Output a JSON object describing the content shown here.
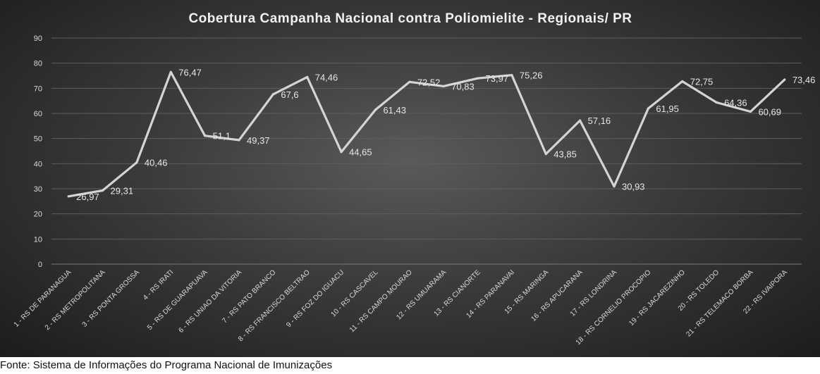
{
  "source_note": "Fonte: Sistema de Informações do Programa Nacional de Imunizações",
  "colors": {
    "background_center": "#5a5a5a",
    "background_edge": "#1c1c1c",
    "line": "#d4d4d4",
    "text": "#e6e6e6"
  },
  "chart_data": {
    "type": "line",
    "title": "Cobertura Campanha Nacional contra Poliomielite - Regionais/ PR",
    "xlabel": "",
    "ylabel": "",
    "ylim": [
      0,
      90
    ],
    "yticks": [
      0,
      10,
      20,
      30,
      40,
      50,
      60,
      70,
      80,
      90
    ],
    "grid": true,
    "legend": "none",
    "categories": [
      "1 - RS DE PARANAGUA",
      "2 - RS METROPOLITANA",
      "3 - RS PONTA GROSSA",
      "4 - RS IRATI",
      "5 - RS DE GUARAPUAVA",
      "6 - RS UNIAO DA VITORIA",
      "7 - RS PATO BRANCO",
      "8 - RS FRANCISCO BELTRAO",
      "9 - RS FOZ DO IGUACU",
      "10 - RS CASCAVEL",
      "11 - RS CAMPO MOURAO",
      "12 - RS UMUARAMA",
      "13 - RS CIANORTE",
      "14 - RS PARANAVAI",
      "15 - RS MARINGA",
      "16 - RS APUCARANA",
      "17 - RS LONDRINA",
      "18 - RS CORNELIO PROCOPIO",
      "19 - RS JACAREZINHO",
      "20 - RS TOLEDO",
      "21 - RS TELEMACO BORBA",
      "22 - RS IVAIPORA"
    ],
    "values": [
      26.97,
      29.31,
      40.46,
      76.47,
      51.1,
      49.37,
      67.6,
      74.46,
      44.65,
      61.43,
      72.52,
      70.83,
      73.97,
      75.26,
      43.85,
      57.16,
      30.93,
      61.95,
      72.75,
      64.36,
      60.69,
      73.46
    ],
    "data_labels": [
      "26,97",
      "29,31",
      "40,46",
      "76,47",
      "51,1",
      "49,37",
      "67,6",
      "74,46",
      "44,65",
      "61,43",
      "72,52",
      "70,83",
      "73,97",
      "75,26",
      "43,85",
      "57,16",
      "30,93",
      "61,95",
      "72,75",
      "64,36",
      "60,69",
      "73,46"
    ]
  }
}
